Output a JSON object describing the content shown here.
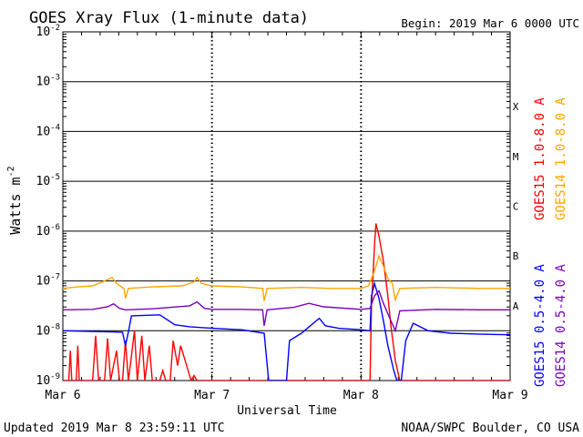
{
  "chart_data": {
    "type": "line",
    "title": "GOES Xray Flux (1-minute data)",
    "begin_text": "Begin:  2019 Mar 6 0000 UTC",
    "xlabel": "Universal Time",
    "ylabel": "Watts m",
    "ylabel_superscript": "-2",
    "footer_left": "Updated 2019 Mar  8 23:59:11 UTC",
    "footer_right": "NOAA/SWPC Boulder, CO USA",
    "x_ticks": [
      {
        "t": 0,
        "label": "Mar 6"
      },
      {
        "t": 1,
        "label": "Mar 7"
      },
      {
        "t": 2,
        "label": "Mar 8"
      },
      {
        "t": 3,
        "label": "Mar 9"
      }
    ],
    "y_scale": "log",
    "ylim": [
      1e-09,
      0.01
    ],
    "y_ticks": [
      {
        "exp": -2,
        "base": "10",
        "sup": "-2"
      },
      {
        "exp": -3,
        "base": "10",
        "sup": "-3"
      },
      {
        "exp": -4,
        "base": "10",
        "sup": "-4"
      },
      {
        "exp": -5,
        "base": "10",
        "sup": "-5"
      },
      {
        "exp": -6,
        "base": "10",
        "sup": "-6"
      },
      {
        "exp": -7,
        "base": "10",
        "sup": "-7"
      },
      {
        "exp": -8,
        "base": "10",
        "sup": "-8"
      },
      {
        "exp": -9,
        "base": "10",
        "sup": "-9"
      }
    ],
    "flare_classes": [
      {
        "label": "X",
        "exp": -3
      },
      {
        "label": "M",
        "exp": -4
      },
      {
        "label": "C",
        "exp": -5
      },
      {
        "label": "B",
        "exp": -6
      },
      {
        "label": "A",
        "exp": -7
      }
    ],
    "grid": "horizontal lines at each decade; dotted vertical lines at day boundaries",
    "legend_placement": "right side, vertical text",
    "series": [
      {
        "name": "GOES15 1.0-8.0 A",
        "color": "#ff0000",
        "points": [
          [
            0,
            -9
          ],
          [
            0.04,
            -9
          ],
          [
            0.05,
            -8.4
          ],
          [
            0.06,
            -9
          ],
          [
            0.09,
            -9
          ],
          [
            0.1,
            -8.3
          ],
          [
            0.11,
            -9
          ],
          [
            0.2,
            -9
          ],
          [
            0.22,
            -8.1
          ],
          [
            0.24,
            -9
          ],
          [
            0.28,
            -9
          ],
          [
            0.3,
            -8.15
          ],
          [
            0.32,
            -9
          ],
          [
            0.36,
            -8.4
          ],
          [
            0.38,
            -9
          ],
          [
            0.4,
            -9
          ],
          [
            0.42,
            -8.2
          ],
          [
            0.44,
            -9
          ],
          [
            0.48,
            -8.0
          ],
          [
            0.5,
            -9
          ],
          [
            0.53,
            -8.1
          ],
          [
            0.55,
            -9
          ],
          [
            0.58,
            -8.3
          ],
          [
            0.6,
            -9
          ],
          [
            0.65,
            -9
          ],
          [
            0.67,
            -8.8
          ],
          [
            0.69,
            -9
          ],
          [
            0.72,
            -9
          ],
          [
            0.74,
            -8.2
          ],
          [
            0.77,
            -8.7
          ],
          [
            0.79,
            -8.3
          ],
          [
            0.81,
            -8.5
          ],
          [
            0.84,
            -8.8
          ],
          [
            0.86,
            -9
          ],
          [
            0.88,
            -8.9
          ],
          [
            0.9,
            -9
          ],
          [
            0.95,
            -9
          ],
          [
            1.0,
            -9
          ],
          [
            1.2,
            -9
          ],
          [
            1.5,
            -9
          ],
          [
            1.8,
            -9
          ],
          [
            2.06,
            -9
          ],
          [
            2.07,
            -7.5
          ],
          [
            2.09,
            -6.3
          ],
          [
            2.1,
            -5.85
          ],
          [
            2.12,
            -6.1
          ],
          [
            2.15,
            -6.6
          ],
          [
            2.18,
            -7.3
          ],
          [
            2.2,
            -7.9
          ],
          [
            2.23,
            -8.6
          ],
          [
            2.26,
            -9
          ],
          [
            2.3,
            -9
          ],
          [
            2.5,
            -9
          ],
          [
            2.8,
            -9
          ],
          [
            3.0,
            -9
          ]
        ]
      },
      {
        "name": "GOES14 1.0-8.0 A",
        "color": "#ffa500",
        "points": [
          [
            0,
            -7.15
          ],
          [
            0.1,
            -7.12
          ],
          [
            0.2,
            -7.1
          ],
          [
            0.28,
            -7.0
          ],
          [
            0.33,
            -6.93
          ],
          [
            0.36,
            -7.05
          ],
          [
            0.41,
            -7.15
          ],
          [
            0.42,
            -7.35
          ],
          [
            0.44,
            -7.15
          ],
          [
            0.6,
            -7.12
          ],
          [
            0.8,
            -7.1
          ],
          [
            0.88,
            -7.02
          ],
          [
            0.9,
            -6.93
          ],
          [
            0.93,
            -7.05
          ],
          [
            1.0,
            -7.1
          ],
          [
            1.2,
            -7.12
          ],
          [
            1.34,
            -7.15
          ],
          [
            1.35,
            -7.4
          ],
          [
            1.37,
            -7.15
          ],
          [
            1.6,
            -7.13
          ],
          [
            1.8,
            -7.15
          ],
          [
            2.0,
            -7.15
          ],
          [
            2.05,
            -7.1
          ],
          [
            2.09,
            -6.8
          ],
          [
            2.12,
            -6.5
          ],
          [
            2.15,
            -6.7
          ],
          [
            2.18,
            -6.95
          ],
          [
            2.21,
            -7.05
          ],
          [
            2.23,
            -7.38
          ],
          [
            2.26,
            -7.15
          ],
          [
            2.5,
            -7.13
          ],
          [
            2.8,
            -7.15
          ],
          [
            3.0,
            -7.15
          ]
        ]
      },
      {
        "name": "GOES15 0.5-4.0 A",
        "color": "#0000ff",
        "points": [
          [
            0,
            -8.0
          ],
          [
            0.3,
            -8.02
          ],
          [
            0.4,
            -8.03
          ],
          [
            0.42,
            -8.3
          ],
          [
            0.44,
            -8.02
          ],
          [
            0.46,
            -7.7
          ],
          [
            0.65,
            -7.68
          ],
          [
            0.7,
            -7.78
          ],
          [
            0.75,
            -7.88
          ],
          [
            0.85,
            -7.92
          ],
          [
            1.0,
            -7.95
          ],
          [
            1.2,
            -7.98
          ],
          [
            1.35,
            -8.05
          ],
          [
            1.38,
            -9
          ],
          [
            1.5,
            -9
          ],
          [
            1.52,
            -8.2
          ],
          [
            1.6,
            -8.05
          ],
          [
            1.68,
            -7.85
          ],
          [
            1.72,
            -7.75
          ],
          [
            1.76,
            -7.9
          ],
          [
            1.85,
            -7.95
          ],
          [
            2.0,
            -7.98
          ],
          [
            2.06,
            -8.0
          ],
          [
            2.07,
            -7.3
          ],
          [
            2.09,
            -7.05
          ],
          [
            2.12,
            -7.35
          ],
          [
            2.15,
            -7.8
          ],
          [
            2.18,
            -8.3
          ],
          [
            2.22,
            -8.8
          ],
          [
            2.24,
            -9
          ],
          [
            2.27,
            -9
          ],
          [
            2.3,
            -8.2
          ],
          [
            2.35,
            -7.85
          ],
          [
            2.45,
            -8.0
          ],
          [
            2.6,
            -8.05
          ],
          [
            2.8,
            -8.07
          ],
          [
            3.0,
            -8.08
          ]
        ]
      },
      {
        "name": "GOES14 0.5-4.0 A",
        "color": "#7b00bf",
        "points": [
          [
            0,
            -7.58
          ],
          [
            0.2,
            -7.57
          ],
          [
            0.3,
            -7.52
          ],
          [
            0.34,
            -7.46
          ],
          [
            0.38,
            -7.55
          ],
          [
            0.42,
            -7.58
          ],
          [
            0.6,
            -7.56
          ],
          [
            0.85,
            -7.5
          ],
          [
            0.9,
            -7.42
          ],
          [
            0.95,
            -7.55
          ],
          [
            1.0,
            -7.57
          ],
          [
            1.2,
            -7.57
          ],
          [
            1.34,
            -7.58
          ],
          [
            1.35,
            -7.9
          ],
          [
            1.37,
            -7.58
          ],
          [
            1.55,
            -7.53
          ],
          [
            1.65,
            -7.45
          ],
          [
            1.75,
            -7.52
          ],
          [
            2.0,
            -7.57
          ],
          [
            2.06,
            -7.55
          ],
          [
            2.09,
            -7.3
          ],
          [
            2.12,
            -7.2
          ],
          [
            2.15,
            -7.45
          ],
          [
            2.2,
            -7.8
          ],
          [
            2.23,
            -8.0
          ],
          [
            2.26,
            -7.6
          ],
          [
            2.5,
            -7.57
          ],
          [
            2.8,
            -7.58
          ],
          [
            3.0,
            -7.58
          ]
        ]
      }
    ]
  }
}
